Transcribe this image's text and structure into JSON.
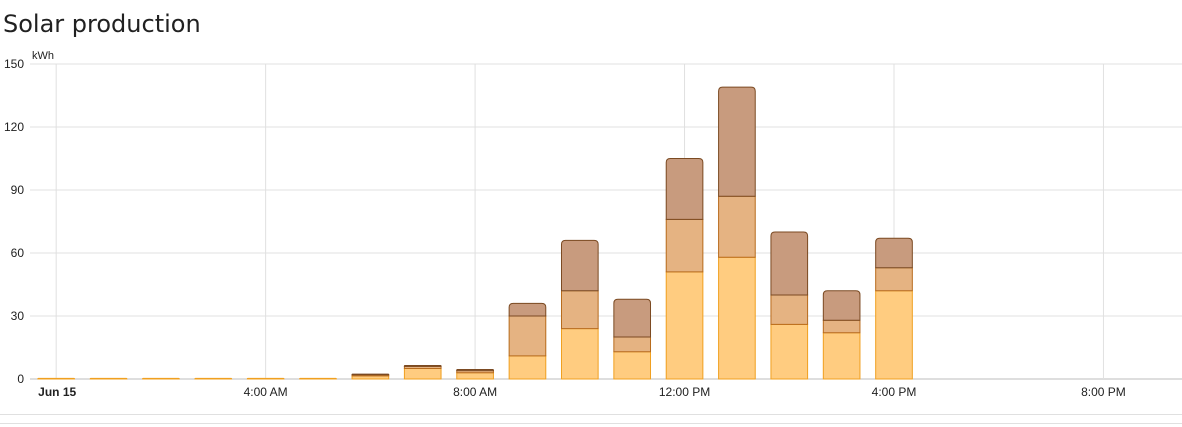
{
  "card": {
    "title": "Solar production"
  },
  "chart_data": {
    "type": "bar",
    "stacked": true,
    "unit": "kWh",
    "ylim": [
      0,
      150
    ],
    "y_ticks": [
      0,
      30,
      60,
      90,
      120,
      150
    ],
    "grid": true,
    "x_axis": {
      "range_hours": [
        -0.5,
        21.5
      ],
      "ticks": [
        {
          "hour": 0,
          "label": "Jun 15",
          "bold": true
        },
        {
          "hour": 4,
          "label": "4:00 AM",
          "bold": false
        },
        {
          "hour": 8,
          "label": "8:00 AM",
          "bold": false
        },
        {
          "hour": 12,
          "label": "12:00 PM",
          "bold": false
        },
        {
          "hour": 16,
          "label": "4:00 PM",
          "bold": false
        },
        {
          "hour": 20,
          "label": "8:00 PM",
          "bold": false
        }
      ]
    },
    "x": [
      0,
      1,
      2,
      3,
      4,
      5,
      6,
      7,
      8,
      9,
      10,
      11,
      12,
      13,
      14,
      15,
      16
    ],
    "series": [
      {
        "color_fill": "#ffcc80",
        "color_line": "#f0a020",
        "values": [
          0.3,
          0.3,
          0.3,
          0.3,
          0.3,
          0.3,
          1.5,
          5,
          3,
          11,
          24,
          13,
          51,
          58,
          26,
          22,
          42
        ]
      },
      {
        "color_fill": "#e5b382",
        "color_line": "#b86b1c",
        "values": [
          0,
          0,
          0,
          0,
          0,
          0,
          0.5,
          1,
          1,
          19,
          18,
          7,
          25,
          29,
          14,
          6,
          11
        ]
      },
      {
        "color_fill": "#c89b7e",
        "color_line": "#7b4a22",
        "values": [
          0,
          0,
          0,
          0,
          0,
          0,
          0.3,
          0.4,
          0.5,
          6,
          24,
          18,
          29,
          52,
          30,
          14,
          14
        ]
      }
    ]
  }
}
